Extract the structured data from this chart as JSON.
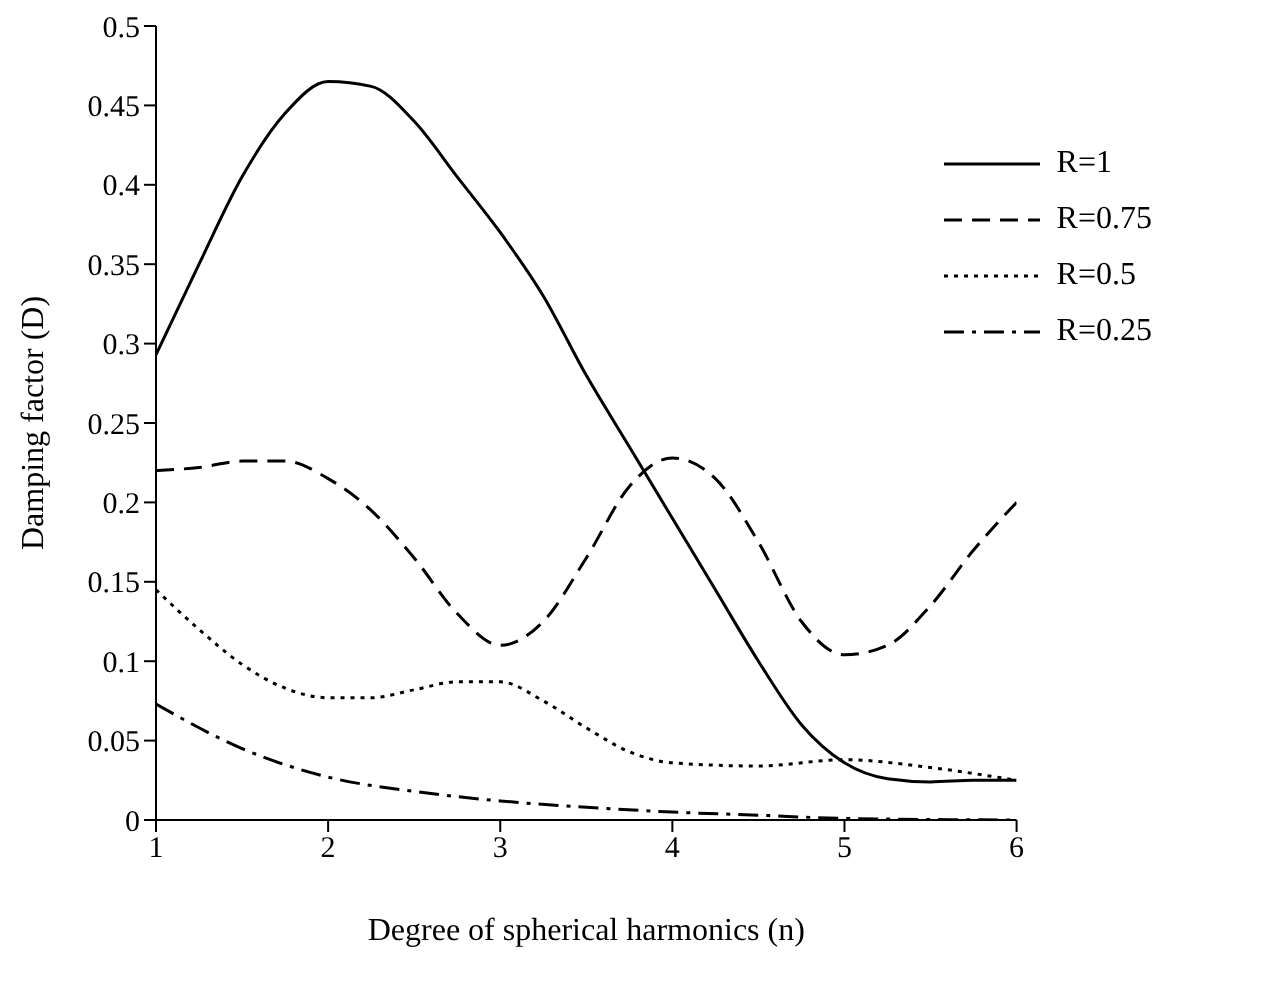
{
  "chart_data": {
    "type": "line",
    "xlabel": "Degree of spherical harmonics (n)",
    "ylabel": "Damping factor (D)",
    "xlim": [
      1,
      6
    ],
    "xticks": [
      1,
      2,
      3,
      4,
      5,
      6
    ],
    "ylim": [
      0,
      0.5
    ],
    "yticks": [
      0,
      0.05,
      0.1,
      0.15,
      0.2,
      0.25,
      0.3,
      0.35,
      0.4,
      0.45,
      0.5
    ],
    "legend": "top right",
    "grid": false,
    "marker": "none",
    "series": [
      {
        "name": "R=1",
        "color": "#000000",
        "line_style": "solid",
        "x": [
          1,
          1.25,
          1.5,
          1.75,
          2,
          2.25,
          2.5,
          2.75,
          3,
          3.25,
          3.5,
          3.75,
          4,
          4.25,
          4.5,
          4.75,
          5,
          5.25,
          5.5,
          5.75,
          6
        ],
        "values": [
          0.293,
          0.35,
          0.405,
          0.445,
          0.465,
          0.462,
          0.44,
          0.405,
          0.37,
          0.33,
          0.28,
          0.235,
          0.19,
          0.145,
          0.1,
          0.06,
          0.036,
          0.026,
          0.024,
          0.025,
          0.025
        ]
      },
      {
        "name": "R=0.75",
        "color": "#000000",
        "line_style": "dashed",
        "x": [
          1,
          1.25,
          1.5,
          1.75,
          2,
          2.25,
          2.5,
          2.75,
          3,
          3.25,
          3.5,
          3.75,
          4,
          4.25,
          4.5,
          4.75,
          5,
          5.25,
          5.5,
          5.75,
          6
        ],
        "values": [
          0.22,
          0.222,
          0.226,
          0.226,
          0.215,
          0.195,
          0.165,
          0.13,
          0.11,
          0.125,
          0.165,
          0.21,
          0.228,
          0.215,
          0.175,
          0.125,
          0.104,
          0.11,
          0.135,
          0.17,
          0.2
        ]
      },
      {
        "name": "R=0.5",
        "color": "#000000",
        "line_style": "dotted",
        "x": [
          1,
          1.25,
          1.5,
          1.75,
          2,
          2.25,
          2.5,
          2.75,
          3,
          3.25,
          3.5,
          3.75,
          4,
          4.5,
          5,
          5.5,
          6
        ],
        "values": [
          0.145,
          0.12,
          0.098,
          0.083,
          0.077,
          0.077,
          0.082,
          0.087,
          0.087,
          0.075,
          0.058,
          0.043,
          0.036,
          0.034,
          0.038,
          0.033,
          0.025
        ]
      },
      {
        "name": "R=0.25",
        "color": "#000000",
        "line_style": "dashdot",
        "x": [
          1,
          1.5,
          2,
          2.5,
          3,
          3.5,
          4,
          4.5,
          5,
          6
        ],
        "values": [
          0.073,
          0.045,
          0.027,
          0.018,
          0.012,
          0.008,
          0.005,
          0.003,
          0.001,
          0
        ]
      }
    ]
  }
}
